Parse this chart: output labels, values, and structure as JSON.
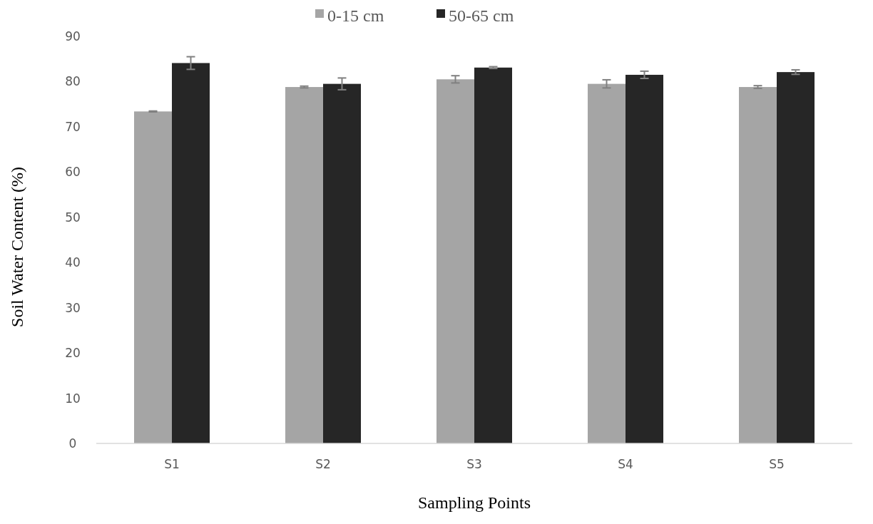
{
  "chart_data": {
    "type": "bar",
    "xlabel": "Sampling Points",
    "ylabel": "Soil Water Content  (%)",
    "categories": [
      "S1",
      "S2",
      "S3",
      "S4",
      "S5"
    ],
    "series": [
      {
        "name": "0-15 cm",
        "color": "#a5a5a5",
        "values": [
          73.4,
          78.8,
          80.5,
          79.5,
          78.8
        ],
        "errors": [
          0.1,
          0.2,
          0.8,
          0.9,
          0.3
        ]
      },
      {
        "name": "50-65 cm",
        "color": "#262626",
        "values": [
          84.1,
          79.5,
          83.1,
          81.5,
          82.1
        ],
        "errors": [
          1.4,
          1.3,
          0.2,
          0.8,
          0.5
        ]
      }
    ],
    "ylim": [
      0,
      90
    ],
    "yticks": [
      0,
      10,
      20,
      30,
      40,
      50,
      60,
      70,
      80,
      90
    ],
    "grid": false,
    "legend": "top"
  }
}
